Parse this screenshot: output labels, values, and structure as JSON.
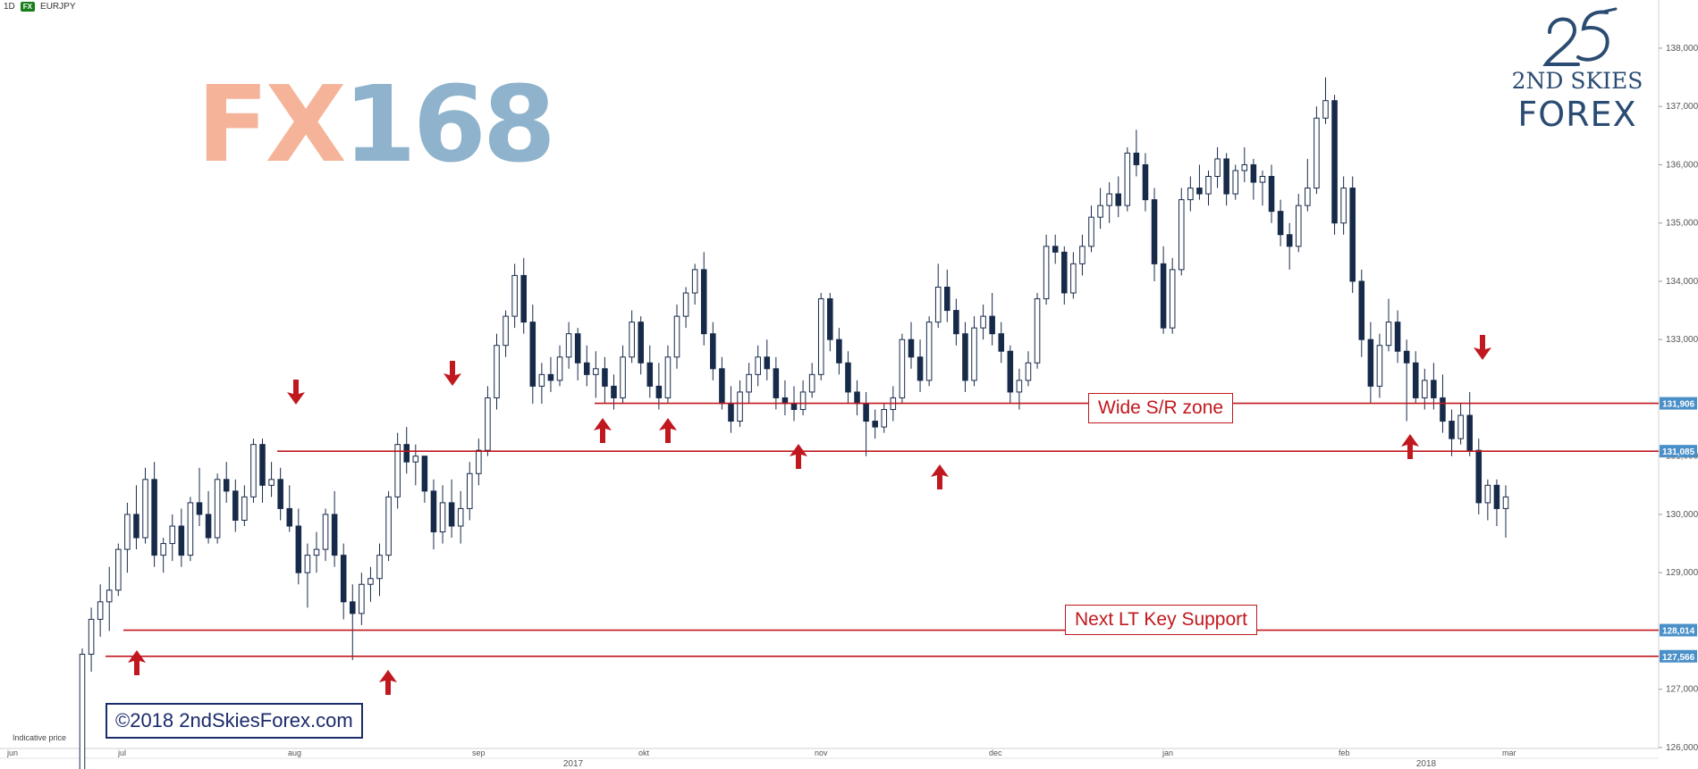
{
  "header": {
    "timeframe": "1D",
    "symbol_badge": "FX",
    "symbol": "EURJPY"
  },
  "watermark": {
    "left": "FX",
    "right": "168"
  },
  "logo": {
    "line1": "2ND SKIES",
    "line2": "FOREX"
  },
  "copyright": "©2018 2ndSkiesForex.com",
  "indicative": "Indicative price",
  "colors": {
    "line": "#c0181e",
    "bull": "#ffffff",
    "bear": "#172a4a",
    "price_tag": "#4a90c8"
  },
  "annotations": {
    "zone": "Wide S/R zone",
    "support": "Next LT Key Support"
  },
  "chart_data": {
    "type": "candlestick",
    "title": "",
    "ylim": [
      125.8,
      138.3
    ],
    "y_ticks": [
      "138,000",
      "137,000",
      "136,000",
      "135,000",
      "134,000",
      "133,000",
      "131,000",
      "130,000",
      "129,000",
      "127,000",
      "126,000"
    ],
    "x_ticks": [
      "jun",
      "jul",
      "aug",
      "sep",
      "2017",
      "okt",
      "nov",
      "dec",
      "jan",
      "feb",
      "2018",
      "mar"
    ],
    "horizontal_levels": [
      {
        "value": 131.906,
        "tag": "131,906"
      },
      {
        "value": 131.085,
        "tag": "131,085"
      },
      {
        "value": 128.014,
        "tag": "128,014"
      },
      {
        "value": 127.566,
        "tag": "127,566"
      }
    ],
    "candles": [
      [
        125.3,
        127.7,
        125.2,
        127.6
      ],
      [
        127.6,
        128.4,
        127.3,
        128.2
      ],
      [
        128.2,
        128.8,
        127.9,
        128.5
      ],
      [
        128.5,
        129.1,
        128.0,
        128.7
      ],
      [
        128.7,
        129.5,
        128.6,
        129.4
      ],
      [
        129.4,
        130.2,
        129.0,
        130.0
      ],
      [
        130.0,
        130.5,
        129.4,
        129.6
      ],
      [
        129.6,
        130.8,
        129.5,
        130.6
      ],
      [
        130.6,
        130.9,
        129.1,
        129.3
      ],
      [
        129.3,
        129.6,
        129.0,
        129.5
      ],
      [
        129.5,
        130.0,
        129.2,
        129.8
      ],
      [
        129.8,
        130.1,
        129.1,
        129.3
      ],
      [
        129.3,
        130.3,
        129.2,
        130.2
      ],
      [
        130.2,
        130.8,
        129.8,
        130.0
      ],
      [
        130.0,
        130.4,
        129.5,
        129.6
      ],
      [
        129.6,
        130.7,
        129.5,
        130.6
      ],
      [
        130.6,
        130.9,
        130.2,
        130.4
      ],
      [
        130.4,
        130.6,
        129.7,
        129.9
      ],
      [
        129.9,
        130.5,
        129.8,
        130.3
      ],
      [
        130.3,
        131.3,
        130.2,
        131.2
      ],
      [
        131.2,
        131.3,
        130.2,
        130.5
      ],
      [
        130.5,
        130.9,
        130.3,
        130.6
      ],
      [
        130.6,
        130.8,
        129.9,
        130.1
      ],
      [
        130.1,
        130.5,
        129.7,
        129.8
      ],
      [
        129.8,
        130.1,
        128.8,
        129.0
      ],
      [
        129.0,
        129.5,
        128.4,
        129.3
      ],
      [
        129.3,
        129.7,
        129.0,
        129.4
      ],
      [
        129.4,
        130.1,
        129.2,
        130.0
      ],
      [
        130.0,
        130.4,
        129.1,
        129.3
      ],
      [
        129.3,
        129.5,
        128.2,
        128.5
      ],
      [
        128.5,
        128.8,
        127.5,
        128.3
      ],
      [
        128.3,
        129.0,
        128.1,
        128.8
      ],
      [
        128.8,
        129.1,
        128.5,
        128.9
      ],
      [
        128.9,
        129.5,
        128.6,
        129.3
      ],
      [
        129.3,
        130.4,
        129.2,
        130.3
      ],
      [
        130.3,
        131.4,
        130.1,
        131.2
      ],
      [
        131.2,
        131.5,
        130.7,
        130.9
      ],
      [
        130.9,
        131.2,
        130.5,
        131.0
      ],
      [
        131.0,
        131.0,
        130.2,
        130.4
      ],
      [
        130.4,
        130.6,
        129.4,
        129.7
      ],
      [
        129.7,
        130.5,
        129.5,
        130.2
      ],
      [
        130.2,
        130.6,
        129.6,
        129.8
      ],
      [
        129.8,
        130.4,
        129.5,
        130.1
      ],
      [
        130.1,
        130.9,
        129.9,
        130.7
      ],
      [
        130.7,
        131.3,
        130.5,
        131.1
      ],
      [
        131.1,
        132.2,
        131.0,
        132.0
      ],
      [
        132.0,
        133.1,
        131.8,
        132.9
      ],
      [
        132.9,
        133.5,
        132.7,
        133.4
      ],
      [
        133.4,
        134.3,
        133.2,
        134.1
      ],
      [
        134.1,
        134.4,
        133.1,
        133.3
      ],
      [
        133.3,
        133.6,
        131.9,
        132.2
      ],
      [
        132.2,
        132.6,
        131.9,
        132.4
      ],
      [
        132.4,
        132.7,
        132.1,
        132.3
      ],
      [
        132.3,
        132.9,
        132.2,
        132.7
      ],
      [
        132.7,
        133.3,
        132.5,
        133.1
      ],
      [
        133.1,
        133.2,
        132.3,
        132.6
      ],
      [
        132.6,
        132.9,
        132.2,
        132.4
      ],
      [
        132.4,
        132.8,
        132.0,
        132.5
      ],
      [
        132.5,
        132.7,
        131.9,
        132.2
      ],
      [
        132.2,
        132.4,
        131.8,
        132.0
      ],
      [
        132.0,
        132.9,
        131.9,
        132.7
      ],
      [
        132.7,
        133.5,
        132.6,
        133.3
      ],
      [
        133.3,
        133.4,
        132.4,
        132.6
      ],
      [
        132.6,
        132.9,
        132.0,
        132.2
      ],
      [
        132.2,
        132.6,
        131.8,
        132.0
      ],
      [
        132.0,
        132.9,
        131.9,
        132.7
      ],
      [
        132.7,
        133.6,
        132.5,
        133.4
      ],
      [
        133.4,
        133.9,
        133.2,
        133.8
      ],
      [
        133.8,
        134.3,
        133.6,
        134.2
      ],
      [
        134.2,
        134.5,
        132.9,
        133.1
      ],
      [
        133.1,
        133.3,
        132.3,
        132.5
      ],
      [
        132.5,
        132.7,
        131.8,
        131.9
      ],
      [
        131.9,
        132.2,
        131.4,
        131.6
      ],
      [
        131.6,
        132.3,
        131.5,
        132.1
      ],
      [
        132.1,
        132.6,
        131.9,
        132.4
      ],
      [
        132.4,
        132.9,
        132.2,
        132.7
      ],
      [
        132.7,
        133.0,
        132.3,
        132.5
      ],
      [
        132.5,
        132.7,
        131.8,
        132.0
      ],
      [
        132.0,
        132.3,
        131.7,
        131.9
      ],
      [
        131.9,
        132.2,
        131.6,
        131.8
      ],
      [
        131.8,
        132.3,
        131.7,
        132.1
      ],
      [
        132.1,
        132.6,
        132.0,
        132.4
      ],
      [
        132.4,
        133.8,
        132.3,
        133.7
      ],
      [
        133.7,
        133.8,
        132.8,
        133.0
      ],
      [
        133.0,
        133.2,
        132.4,
        132.6
      ],
      [
        132.6,
        132.8,
        131.9,
        132.1
      ],
      [
        132.1,
        132.3,
        131.7,
        131.9
      ],
      [
        131.9,
        132.1,
        131.0,
        131.6
      ],
      [
        131.6,
        131.8,
        131.3,
        131.5
      ],
      [
        131.5,
        131.9,
        131.4,
        131.8
      ],
      [
        131.8,
        132.2,
        131.6,
        132.0
      ],
      [
        132.0,
        133.1,
        131.9,
        133.0
      ],
      [
        133.0,
        133.3,
        132.5,
        132.7
      ],
      [
        132.7,
        133.0,
        132.1,
        132.3
      ],
      [
        132.3,
        133.4,
        132.2,
        133.3
      ],
      [
        133.3,
        134.3,
        133.2,
        133.9
      ],
      [
        133.9,
        134.2,
        133.3,
        133.5
      ],
      [
        133.5,
        133.7,
        132.9,
        133.1
      ],
      [
        133.1,
        133.3,
        132.1,
        132.3
      ],
      [
        132.3,
        133.4,
        132.2,
        133.2
      ],
      [
        133.2,
        133.6,
        133.0,
        133.4
      ],
      [
        133.4,
        133.8,
        132.9,
        133.1
      ],
      [
        133.1,
        133.3,
        132.6,
        132.8
      ],
      [
        132.8,
        132.9,
        131.9,
        132.1
      ],
      [
        132.1,
        132.5,
        131.8,
        132.3
      ],
      [
        132.3,
        132.8,
        132.2,
        132.6
      ],
      [
        132.6,
        133.8,
        132.5,
        133.7
      ],
      [
        133.7,
        134.8,
        133.6,
        134.6
      ],
      [
        134.6,
        134.8,
        134.3,
        134.5
      ],
      [
        134.5,
        134.6,
        133.6,
        133.8
      ],
      [
        133.8,
        134.5,
        133.7,
        134.3
      ],
      [
        134.3,
        134.8,
        134.1,
        134.6
      ],
      [
        134.6,
        135.3,
        134.5,
        135.1
      ],
      [
        135.1,
        135.6,
        134.9,
        135.3
      ],
      [
        135.3,
        135.7,
        135.0,
        135.5
      ],
      [
        135.5,
        135.8,
        135.1,
        135.3
      ],
      [
        135.3,
        136.3,
        135.2,
        136.2
      ],
      [
        136.2,
        136.6,
        135.8,
        136.0
      ],
      [
        136.0,
        136.2,
        135.2,
        135.4
      ],
      [
        135.4,
        135.6,
        134.0,
        134.3
      ],
      [
        134.3,
        134.6,
        133.1,
        133.2
      ],
      [
        133.2,
        134.4,
        133.1,
        134.2
      ],
      [
        134.2,
        135.6,
        134.1,
        135.4
      ],
      [
        135.4,
        135.8,
        135.2,
        135.6
      ],
      [
        135.6,
        136.0,
        135.4,
        135.5
      ],
      [
        135.5,
        135.9,
        135.3,
        135.8
      ],
      [
        135.8,
        136.3,
        135.6,
        136.1
      ],
      [
        136.1,
        136.2,
        135.3,
        135.5
      ],
      [
        135.5,
        136.0,
        135.4,
        135.9
      ],
      [
        135.9,
        136.3,
        135.7,
        136.0
      ],
      [
        136.0,
        136.1,
        135.4,
        135.7
      ],
      [
        135.7,
        135.9,
        135.3,
        135.8
      ],
      [
        135.8,
        136.0,
        135.0,
        135.2
      ],
      [
        135.2,
        135.4,
        134.6,
        134.8
      ],
      [
        134.8,
        135.0,
        134.2,
        134.6
      ],
      [
        134.6,
        135.5,
        134.5,
        135.3
      ],
      [
        135.3,
        136.1,
        135.2,
        135.6
      ],
      [
        135.6,
        137.0,
        135.5,
        136.8
      ],
      [
        136.8,
        137.5,
        136.7,
        137.1
      ],
      [
        137.1,
        137.2,
        134.8,
        135.0
      ],
      [
        135.0,
        135.8,
        134.8,
        135.6
      ],
      [
        135.6,
        135.8,
        133.8,
        134.0
      ],
      [
        134.0,
        134.2,
        132.7,
        133.0
      ],
      [
        133.0,
        133.3,
        131.9,
        132.2
      ],
      [
        132.2,
        133.1,
        132.0,
        132.9
      ],
      [
        132.9,
        133.7,
        132.8,
        133.3
      ],
      [
        133.3,
        133.5,
        132.6,
        132.8
      ],
      [
        132.8,
        133.0,
        131.6,
        132.6
      ],
      [
        132.6,
        132.8,
        131.9,
        132.0
      ],
      [
        132.0,
        132.5,
        131.8,
        132.3
      ],
      [
        132.3,
        132.6,
        131.8,
        132.0
      ],
      [
        132.0,
        132.4,
        131.4,
        131.6
      ],
      [
        131.6,
        131.8,
        131.0,
        131.3
      ],
      [
        131.3,
        131.9,
        131.2,
        131.7
      ],
      [
        131.7,
        132.1,
        131.0,
        131.1
      ],
      [
        131.1,
        131.3,
        130.0,
        130.2
      ],
      [
        130.2,
        130.6,
        129.9,
        130.5
      ],
      [
        130.5,
        130.6,
        129.8,
        130.1
      ],
      [
        130.1,
        130.5,
        129.6,
        130.3
      ]
    ]
  }
}
